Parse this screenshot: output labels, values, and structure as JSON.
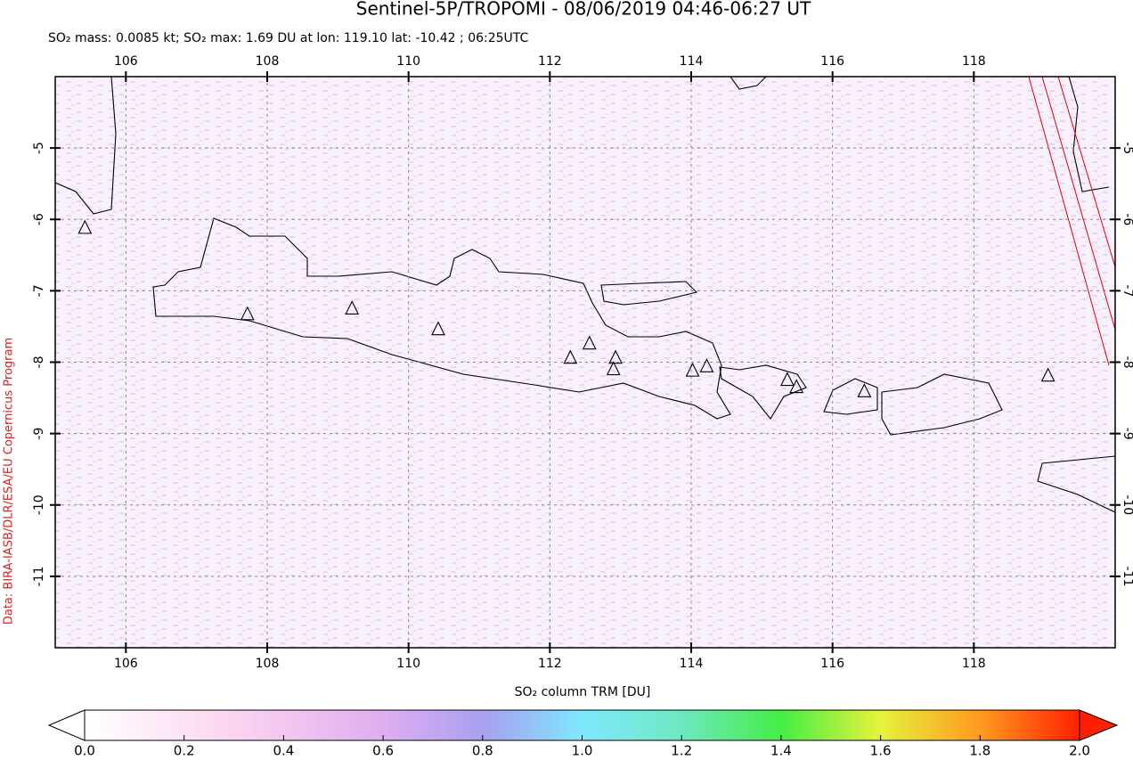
{
  "chart_data": {
    "type": "map",
    "title": "Sentinel-5P/TROPOMI - 08/06/2019 04:46-06:27 UT",
    "subtitle": "SO₂ mass: 0.0085 kt; SO₂ max: 1.69 DU at lon: 119.10 lat: -10.42 ; 06:25UTC",
    "credit": "Data: BIRA-IASB/DLR/ESA/EU Copernicus Program",
    "xlim": [
      105,
      120
    ],
    "ylim": [
      -12,
      -4
    ],
    "xticks": [
      106,
      108,
      110,
      112,
      114,
      116,
      118
    ],
    "yticks": [
      -5,
      -6,
      -7,
      -8,
      -9,
      -10,
      -11
    ],
    "grid": true,
    "volcanoes": {
      "lon": [
        105.42,
        107.72,
        109.2,
        110.42,
        112.29,
        112.56,
        112.93,
        112.9,
        114.02,
        114.22,
        115.36,
        115.49,
        116.45,
        119.05
      ],
      "lat": [
        -6.12,
        -7.33,
        -7.25,
        -7.54,
        -7.94,
        -7.74,
        -7.94,
        -8.1,
        -8.12,
        -8.06,
        -8.25,
        -8.35,
        -8.41,
        -8.19
      ]
    },
    "colorbar": {
      "label": "SO₂ column TRM [DU]",
      "lim": [
        0,
        2
      ],
      "ticks": [
        {
          "value": 0,
          "label": "0.0"
        },
        0.2,
        0.4,
        0.6,
        0.8,
        {
          "value": 1,
          "label": "1.0"
        },
        1.2,
        1.4,
        1.6,
        1.8,
        {
          "value": 2,
          "label": "2.0"
        }
      ]
    }
  }
}
